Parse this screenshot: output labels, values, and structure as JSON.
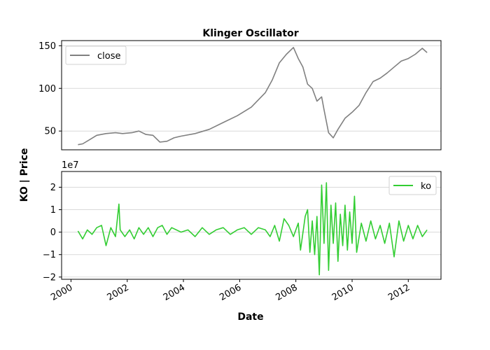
{
  "chart_data": [
    {
      "type": "line",
      "title": "Klinger Oscillator",
      "ylim": [
        28,
        156
      ],
      "yticks": [
        50,
        100,
        150
      ],
      "grid": "horizontal",
      "legend_position": "upper left",
      "series": [
        {
          "name": "close",
          "color": "#808080",
          "points": [
            [
              "2000-04-01",
              34
            ],
            [
              "2000-06-01",
              35
            ],
            [
              "2000-09-01",
              40
            ],
            [
              "2000-12-01",
              45
            ],
            [
              "2001-04-01",
              47
            ],
            [
              "2001-08-01",
              48
            ],
            [
              "2001-11-01",
              47
            ],
            [
              "2002-03-01",
              48
            ],
            [
              "2002-06-01",
              50
            ],
            [
              "2002-09-01",
              46
            ],
            [
              "2002-12-01",
              45
            ],
            [
              "2003-03-01",
              37
            ],
            [
              "2003-06-01",
              38
            ],
            [
              "2003-09-01",
              42
            ],
            [
              "2003-12-01",
              44
            ],
            [
              "2004-06-01",
              47
            ],
            [
              "2004-12-01",
              52
            ],
            [
              "2005-06-01",
              60
            ],
            [
              "2005-12-01",
              68
            ],
            [
              "2006-06-01",
              78
            ],
            [
              "2006-12-01",
              95
            ],
            [
              "2007-03-01",
              110
            ],
            [
              "2007-06-01",
              130
            ],
            [
              "2007-09-01",
              140
            ],
            [
              "2007-12-01",
              148
            ],
            [
              "2008-02-01",
              135
            ],
            [
              "2008-04-01",
              125
            ],
            [
              "2008-06-01",
              105
            ],
            [
              "2008-08-01",
              100
            ],
            [
              "2008-10-01",
              85
            ],
            [
              "2008-12-01",
              90
            ],
            [
              "2009-01-01",
              75
            ],
            [
              "2009-03-01",
              48
            ],
            [
              "2009-05-01",
              42
            ],
            [
              "2009-07-01",
              52
            ],
            [
              "2009-10-01",
              65
            ],
            [
              "2010-01-01",
              72
            ],
            [
              "2010-04-01",
              80
            ],
            [
              "2010-07-01",
              95
            ],
            [
              "2010-10-01",
              108
            ],
            [
              "2011-01-01",
              112
            ],
            [
              "2011-04-01",
              118
            ],
            [
              "2011-07-01",
              125
            ],
            [
              "2011-10-01",
              132
            ],
            [
              "2012-01-01",
              135
            ],
            [
              "2012-04-01",
              140
            ],
            [
              "2012-07-01",
              147
            ],
            [
              "2012-09-01",
              142
            ]
          ]
        }
      ]
    },
    {
      "type": "line",
      "ylim": [
        -2.1,
        2.7
      ],
      "yticks": [
        -2,
        -1,
        0,
        1,
        2
      ],
      "y_offset_label": "1e7",
      "xlabel": "Date",
      "ylabel": "KO | Price",
      "xlim": [
        "1999-09-01",
        "2013-03-01"
      ],
      "xticks": [
        "2000",
        "2002",
        "2004",
        "2006",
        "2008",
        "2010",
        "2012"
      ],
      "grid": "horizontal",
      "legend_position": "upper right",
      "series": [
        {
          "name": "ko",
          "color": "#32cd32",
          "points": [
            [
              "2000-04-01",
              0.05
            ],
            [
              "2000-06-01",
              -0.3
            ],
            [
              "2000-08-01",
              0.1
            ],
            [
              "2000-10-01",
              -0.1
            ],
            [
              "2000-12-01",
              0.2
            ],
            [
              "2001-02-01",
              0.3
            ],
            [
              "2001-04-01",
              -0.6
            ],
            [
              "2001-06-01",
              0.2
            ],
            [
              "2001-08-01",
              -0.2
            ],
            [
              "2001-09-15",
              1.25
            ],
            [
              "2001-10-01",
              0.1
            ],
            [
              "2001-12-01",
              -0.2
            ],
            [
              "2002-02-01",
              0.1
            ],
            [
              "2002-04-01",
              -0.3
            ],
            [
              "2002-06-01",
              0.2
            ],
            [
              "2002-08-01",
              -0.1
            ],
            [
              "2002-10-01",
              0.2
            ],
            [
              "2002-12-01",
              -0.2
            ],
            [
              "2003-02-01",
              0.2
            ],
            [
              "2003-04-01",
              0.3
            ],
            [
              "2003-06-01",
              -0.1
            ],
            [
              "2003-08-01",
              0.2
            ],
            [
              "2003-10-01",
              0.1
            ],
            [
              "2003-12-01",
              0.0
            ],
            [
              "2004-03-01",
              0.1
            ],
            [
              "2004-06-01",
              -0.2
            ],
            [
              "2004-09-01",
              0.2
            ],
            [
              "2004-12-01",
              -0.1
            ],
            [
              "2005-03-01",
              0.1
            ],
            [
              "2005-06-01",
              0.2
            ],
            [
              "2005-09-01",
              -0.1
            ],
            [
              "2005-12-01",
              0.1
            ],
            [
              "2006-03-01",
              0.2
            ],
            [
              "2006-06-01",
              -0.1
            ],
            [
              "2006-09-01",
              0.2
            ],
            [
              "2006-12-01",
              0.1
            ],
            [
              "2007-02-01",
              -0.2
            ],
            [
              "2007-04-01",
              0.3
            ],
            [
              "2007-06-01",
              -0.4
            ],
            [
              "2007-08-01",
              0.6
            ],
            [
              "2007-10-01",
              0.3
            ],
            [
              "2007-12-01",
              -0.2
            ],
            [
              "2008-02-01",
              0.4
            ],
            [
              "2008-03-01",
              -0.8
            ],
            [
              "2008-05-01",
              0.7
            ],
            [
              "2008-06-01",
              1.0
            ],
            [
              "2008-07-01",
              -0.9
            ],
            [
              "2008-08-01",
              0.5
            ],
            [
              "2008-09-01",
              -1.0
            ],
            [
              "2008-10-01",
              0.7
            ],
            [
              "2008-11-01",
              -1.9
            ],
            [
              "2008-12-01",
              2.1
            ],
            [
              "2009-01-01",
              -0.5
            ],
            [
              "2009-02-01",
              2.2
            ],
            [
              "2009-03-01",
              -1.7
            ],
            [
              "2009-04-01",
              1.2
            ],
            [
              "2009-05-01",
              -0.5
            ],
            [
              "2009-06-01",
              1.3
            ],
            [
              "2009-07-01",
              -1.3
            ],
            [
              "2009-08-01",
              0.8
            ],
            [
              "2009-09-01",
              -0.6
            ],
            [
              "2009-10-01",
              1.2
            ],
            [
              "2009-11-01",
              -0.8
            ],
            [
              "2009-12-01",
              0.9
            ],
            [
              "2010-01-01",
              -0.5
            ],
            [
              "2010-02-01",
              1.6
            ],
            [
              "2010-03-01",
              -0.9
            ],
            [
              "2010-05-01",
              0.4
            ],
            [
              "2010-07-01",
              -0.4
            ],
            [
              "2010-09-01",
              0.5
            ],
            [
              "2010-11-01",
              -0.3
            ],
            [
              "2011-01-01",
              0.3
            ],
            [
              "2011-03-01",
              -0.5
            ],
            [
              "2011-05-01",
              0.4
            ],
            [
              "2011-07-01",
              -1.1
            ],
            [
              "2011-09-01",
              0.5
            ],
            [
              "2011-11-01",
              -0.4
            ],
            [
              "2012-01-01",
              0.3
            ],
            [
              "2012-03-01",
              -0.3
            ],
            [
              "2012-05-01",
              0.3
            ],
            [
              "2012-07-01",
              -0.2
            ],
            [
              "2012-09-01",
              0.1
            ]
          ]
        }
      ]
    }
  ]
}
